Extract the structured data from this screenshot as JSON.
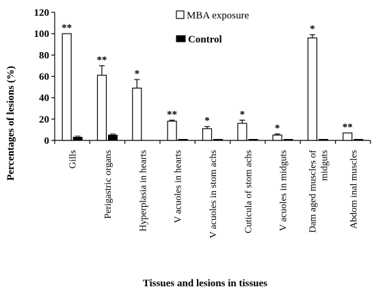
{
  "chart_data": {
    "type": "bar",
    "categories": [
      "Gills",
      "Perigastric organs",
      "Hyperplasia in hearts",
      "V acuoles in hearts",
      "V acuoles in stom achs",
      "Cuticula of stom achs",
      "V acuoles in midguts",
      "Dam aged muscles of",
      "Abdom inal muscles"
    ],
    "category_label_lines": [
      [
        "Gills"
      ],
      [
        "Perigastric organs"
      ],
      [
        "Hyperplasia in hearts"
      ],
      [
        "V acuoles in hearts"
      ],
      [
        "V acuoles in stom achs"
      ],
      [
        "Cuticula of stom achs"
      ],
      [
        "V acuoles in midguts"
      ],
      [
        "Dam aged muscles of",
        "midguts"
      ],
      [
        "Abdom inal muscles"
      ]
    ],
    "series": [
      {
        "name": "MBA exposure",
        "values": [
          100,
          61,
          49,
          18,
          11,
          16,
          5,
          96,
          7
        ],
        "errors": [
          0,
          9,
          8,
          1,
          2,
          3,
          1,
          3,
          0
        ],
        "fill": "#ffffff"
      },
      {
        "name": "Control",
        "values": [
          3,
          5,
          0,
          1,
          1,
          1,
          1,
          1,
          1
        ],
        "errors": [
          1,
          1,
          0,
          0,
          0,
          0,
          0,
          0,
          0
        ],
        "fill": "#000000"
      }
    ],
    "significance": [
      "**",
      "**",
      "*",
      "**",
      "*",
      "*",
      "*",
      "*",
      "**"
    ],
    "yticks": [
      "0",
      "20",
      "40",
      "60",
      "80",
      "100",
      "120"
    ],
    "ylim": [
      0,
      120
    ],
    "ylabel": "Percentages of lesions (%)",
    "xlabel": "Tissues and lesions in tissues",
    "legend_position": "top-right",
    "grid": false
  }
}
